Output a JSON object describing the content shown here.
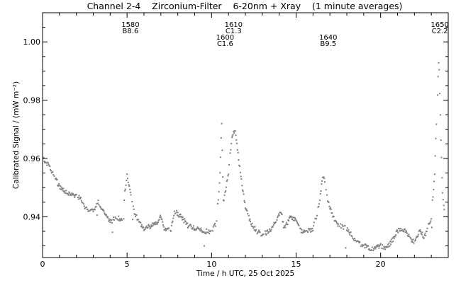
{
  "chart_data": {
    "type": "scatter",
    "title": "Channel 2-4    Zirconium-Filter    6-20nm + Xray    (1 minute averages)",
    "xlabel": "Time / h UTC, 25 Oct 2025",
    "ylabel": "Calibrated Signal / (mW m⁻²)",
    "xlim": [
      0,
      24
    ],
    "ylim": [
      0.926,
      1.01
    ],
    "x_ticks": [
      0,
      5,
      10,
      15,
      20
    ],
    "x_tick_labels": [
      "0",
      "5",
      "10",
      "15",
      "20"
    ],
    "y_ticks": [
      0.94,
      0.96,
      0.98,
      1.0
    ],
    "y_tick_labels": [
      "0.94",
      "0.96",
      "0.98",
      "1.00"
    ],
    "grid": false,
    "colors": {
      "points": "#808080",
      "axes": "#000000",
      "background": "#ffffff"
    },
    "flare_annotations": [
      {
        "x": 5.2,
        "row": 1,
        "id": "1580",
        "class": "B8.6"
      },
      {
        "x": 10.8,
        "row": 2,
        "id": "1600",
        "class": "C1.6"
      },
      {
        "x": 11.3,
        "row": 1,
        "id": "1610",
        "class": "C1.3"
      },
      {
        "x": 16.9,
        "row": 2,
        "id": "1640",
        "class": "B9.5"
      },
      {
        "x": 23.5,
        "row": 1,
        "id": "1650",
        "class": "C2.2"
      }
    ],
    "series": [
      {
        "profile": [
          [
            0.0,
            0.96
          ],
          [
            0.3,
            0.958
          ],
          [
            0.6,
            0.955
          ],
          [
            0.8,
            0.953
          ],
          [
            1.0,
            0.95
          ],
          [
            1.5,
            0.948
          ],
          [
            2.0,
            0.947
          ],
          [
            2.3,
            0.946
          ],
          [
            2.5,
            0.943
          ],
          [
            3.0,
            0.942
          ],
          [
            3.3,
            0.945
          ],
          [
            3.7,
            0.941
          ],
          [
            4.0,
            0.938
          ],
          [
            4.3,
            0.94
          ],
          [
            4.7,
            0.939
          ],
          [
            4.9,
            0.95
          ],
          [
            5.0,
            0.954
          ],
          [
            5.2,
            0.948
          ],
          [
            5.4,
            0.942
          ],
          [
            5.7,
            0.938
          ],
          [
            6.0,
            0.936
          ],
          [
            6.5,
            0.937
          ],
          [
            6.8,
            0.938
          ],
          [
            7.0,
            0.94
          ],
          [
            7.2,
            0.936
          ],
          [
            7.6,
            0.935
          ],
          [
            7.8,
            0.942
          ],
          [
            8.2,
            0.94
          ],
          [
            8.6,
            0.937
          ],
          [
            9.0,
            0.936
          ],
          [
            9.5,
            0.935
          ],
          [
            10.0,
            0.935
          ],
          [
            10.3,
            0.938
          ],
          [
            10.5,
            0.955
          ],
          [
            10.6,
            0.972
          ],
          [
            10.7,
            0.945
          ],
          [
            11.0,
            0.955
          ],
          [
            11.2,
            0.968
          ],
          [
            11.4,
            0.97
          ],
          [
            11.7,
            0.955
          ],
          [
            12.0,
            0.943
          ],
          [
            12.3,
            0.938
          ],
          [
            12.7,
            0.935
          ],
          [
            13.0,
            0.934
          ],
          [
            13.4,
            0.935
          ],
          [
            13.8,
            0.938
          ],
          [
            14.1,
            0.942
          ],
          [
            14.3,
            0.936
          ],
          [
            14.7,
            0.94
          ],
          [
            15.0,
            0.939
          ],
          [
            15.3,
            0.935
          ],
          [
            15.7,
            0.935
          ],
          [
            16.0,
            0.936
          ],
          [
            16.2,
            0.94
          ],
          [
            16.4,
            0.946
          ],
          [
            16.6,
            0.955
          ],
          [
            16.9,
            0.945
          ],
          [
            17.2,
            0.94
          ],
          [
            17.5,
            0.937
          ],
          [
            18.0,
            0.936
          ],
          [
            18.5,
            0.932
          ],
          [
            19.0,
            0.93
          ],
          [
            19.5,
            0.929
          ],
          [
            20.0,
            0.93
          ],
          [
            20.3,
            0.929
          ],
          [
            20.7,
            0.932
          ],
          [
            21.0,
            0.935
          ],
          [
            21.3,
            0.936
          ],
          [
            21.7,
            0.933
          ],
          [
            22.0,
            0.931
          ],
          [
            22.3,
            0.935
          ],
          [
            22.6,
            0.933
          ],
          [
            22.9,
            0.938
          ],
          [
            23.0,
            0.94
          ],
          [
            23.2,
            0.955
          ],
          [
            23.35,
            0.98
          ],
          [
            23.45,
            0.995
          ],
          [
            23.55,
            0.97
          ],
          [
            23.65,
            0.95
          ],
          [
            23.8,
            0.94
          ]
        ]
      }
    ]
  }
}
